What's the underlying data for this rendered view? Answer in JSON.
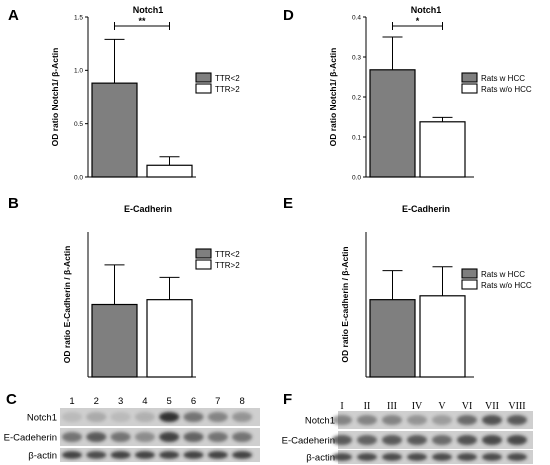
{
  "chart_data": [
    {
      "panel": "A",
      "type": "bar",
      "title": "Notch1",
      "ylabel": "OD ratio Notch1/ β-Actin",
      "ylim": [
        0,
        1.5
      ],
      "yticks": [
        "0.0",
        "0.5",
        "1.0",
        "1.5"
      ],
      "categories": [
        "TTR<2",
        "TTR>2"
      ],
      "values": [
        0.88,
        0.11
      ],
      "errors": [
        0.41,
        0.08
      ],
      "colors": [
        "#7f7f7f",
        "#ffffff"
      ],
      "legend": [
        "TTR<2",
        "TTR>2"
      ],
      "significance": "**"
    },
    {
      "panel": "D",
      "type": "bar",
      "title": "Notch1",
      "ylabel": "OD ratio Notch1/ β-Actin",
      "ylim": [
        0,
        0.4
      ],
      "yticks": [
        "0.0",
        "0.1",
        "0.2",
        "0.3",
        "0.4"
      ],
      "categories": [
        "Rats w HCC",
        "Rats w/o HCC"
      ],
      "values": [
        0.268,
        0.138
      ],
      "errors": [
        0.082,
        0.011
      ],
      "colors": [
        "#7f7f7f",
        "#ffffff"
      ],
      "legend": [
        "Rats w HCC",
        "Rats w/o HCC"
      ],
      "significance": "*"
    },
    {
      "panel": "B",
      "type": "bar",
      "title": "E-Cadherin",
      "ylabel": "OD ratio E-Cadherin / β-Actin",
      "ylim": [
        0,
        3
      ],
      "categories": [
        "TTR<2",
        "TTR>2"
      ],
      "values": [
        1.5,
        1.6
      ],
      "errors": [
        0.82,
        0.46
      ],
      "colors": [
        "#7f7f7f",
        "#ffffff"
      ],
      "legend": [
        "TTR<2",
        "TTR>2"
      ]
    },
    {
      "panel": "E",
      "type": "bar",
      "title": "E-Cadherin",
      "ylabel": "OD ratio E-cadherin / β-Actin",
      "ylim": [
        0,
        3
      ],
      "categories": [
        "Rats w HCC",
        "Rats w/o HCC"
      ],
      "values": [
        1.6,
        1.68
      ],
      "errors": [
        0.6,
        0.6
      ],
      "colors": [
        "#7f7f7f",
        "#ffffff"
      ],
      "legend": [
        "Rats w HCC",
        "Rats w/o HCC"
      ]
    }
  ],
  "blots": {
    "C": {
      "letter": "C",
      "lanes": [
        "1",
        "2",
        "3",
        "4",
        "5",
        "6",
        "7",
        "8"
      ],
      "rows": [
        "Notch1",
        "E-Cadeherin",
        "β-actin"
      ]
    },
    "F": {
      "letter": "F",
      "lanes": [
        "I",
        "II",
        "III",
        "IV",
        "V",
        "VI",
        "VII",
        "VIII"
      ],
      "rows": [
        "Notch1",
        "E-Cadeherin",
        "β-actin"
      ]
    }
  },
  "colors": {
    "bar_dark": "#7f7f7f",
    "bar_light": "#ffffff",
    "blot_bg": "#cfcfcf",
    "band": "#2a2a2a"
  }
}
